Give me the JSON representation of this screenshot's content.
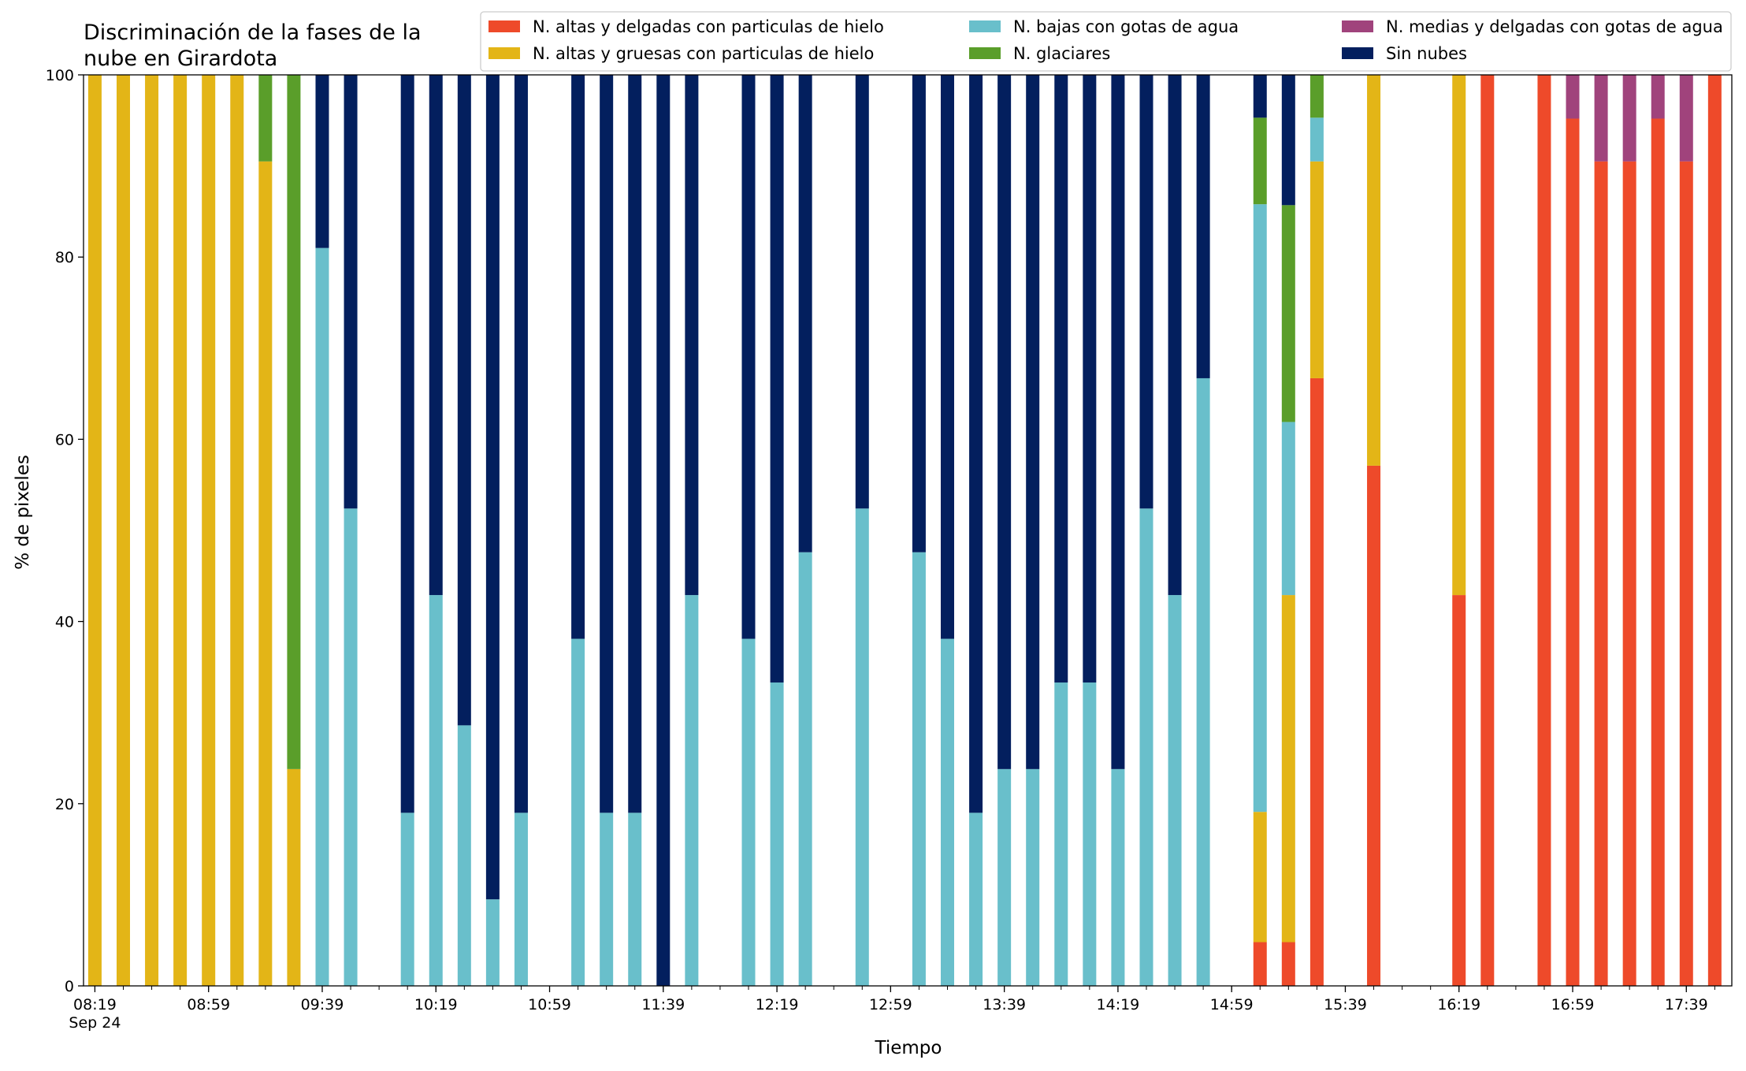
{
  "chart_data": {
    "type": "bar",
    "stacked": true,
    "title": "Discriminación de la fases de la\nnube en Girardota",
    "xlabel": "Tiempo",
    "ylabel": "% de pixeles",
    "ylim": [
      0,
      100
    ],
    "yticks": [
      0,
      20,
      40,
      60,
      80,
      100
    ],
    "xlim": [
      "08:15",
      "17:55"
    ],
    "x_tick_labels": [
      "08:19",
      "08:59",
      "09:39",
      "10:19",
      "10:59",
      "11:39",
      "12:19",
      "12:59",
      "13:39",
      "14:19",
      "14:59",
      "15:39",
      "16:19",
      "16:59",
      "17:39"
    ],
    "x_date_label": "Sep 24",
    "grid": false,
    "legend_position": "upper-right",
    "colors": {
      "alta_delgada_hielo": "#ee4a2a",
      "alta_gruesa_hielo": "#e3b517",
      "baja_agua": "#69bfcb",
      "glaciares": "#5a9e2a",
      "media_delgada_agua": "#a0437c",
      "sin_nubes": "#031f5e"
    },
    "series": [
      {
        "key": "alta_delgada_hielo",
        "name": "N. altas y delgadas con particulas de hielo"
      },
      {
        "key": "alta_gruesa_hielo",
        "name": "N. altas y gruesas con particulas de hielo"
      },
      {
        "key": "baja_agua",
        "name": "N. bajas con gotas de agua"
      },
      {
        "key": "glaciares",
        "name": "N. glaciares"
      },
      {
        "key": "media_delgada_agua",
        "name": "N. medias y delgadas con gotas de agua"
      },
      {
        "key": "sin_nubes",
        "name": "Sin nubes"
      }
    ],
    "bars": [
      {
        "time": "08:19",
        "values": [
          0,
          100,
          0,
          0,
          0,
          0
        ]
      },
      {
        "time": "08:29",
        "values": [
          0,
          100,
          0,
          0,
          0,
          0
        ]
      },
      {
        "time": "08:39",
        "values": [
          0,
          100,
          0,
          0,
          0,
          0
        ]
      },
      {
        "time": "08:49",
        "values": [
          0,
          100,
          0,
          0,
          0,
          0
        ]
      },
      {
        "time": "08:59",
        "values": [
          0,
          100,
          0,
          0,
          0,
          0
        ]
      },
      {
        "time": "09:09",
        "values": [
          0,
          100,
          0,
          0,
          0,
          0
        ]
      },
      {
        "time": "09:19",
        "values": [
          0,
          90.5,
          0,
          9.5,
          0,
          0
        ]
      },
      {
        "time": "09:29",
        "values": [
          0,
          23.8,
          0,
          76.2,
          0,
          0
        ]
      },
      {
        "time": "09:39",
        "values": [
          0,
          0,
          81,
          0,
          0,
          19
        ]
      },
      {
        "time": "09:49",
        "values": [
          0,
          0,
          52.4,
          0,
          0,
          47.6
        ]
      },
      {
        "time": "10:09",
        "values": [
          0,
          0,
          19,
          0,
          0,
          81
        ]
      },
      {
        "time": "10:19",
        "values": [
          0,
          0,
          42.9,
          0,
          0,
          57.1
        ]
      },
      {
        "time": "10:29",
        "values": [
          0,
          0,
          28.6,
          0,
          0,
          71.4
        ]
      },
      {
        "time": "10:39",
        "values": [
          0,
          0,
          9.5,
          0,
          0,
          90.5
        ]
      },
      {
        "time": "10:49",
        "values": [
          0,
          0,
          19,
          0,
          0,
          81
        ]
      },
      {
        "time": "11:09",
        "values": [
          0,
          0,
          38.1,
          0,
          0,
          61.9
        ]
      },
      {
        "time": "11:19",
        "values": [
          0,
          0,
          19,
          0,
          0,
          81
        ]
      },
      {
        "time": "11:29",
        "values": [
          0,
          0,
          19,
          0,
          0,
          81
        ]
      },
      {
        "time": "11:39",
        "values": [
          0,
          0,
          0,
          0,
          0,
          100
        ]
      },
      {
        "time": "11:49",
        "values": [
          0,
          0,
          42.9,
          0,
          0,
          57.1
        ]
      },
      {
        "time": "12:09",
        "values": [
          0,
          0,
          38.1,
          0,
          0,
          61.9
        ]
      },
      {
        "time": "12:19",
        "values": [
          0,
          0,
          33.3,
          0,
          0,
          66.7
        ]
      },
      {
        "time": "12:29",
        "values": [
          0,
          0,
          47.6,
          0,
          0,
          52.4
        ]
      },
      {
        "time": "12:49",
        "values": [
          0,
          0,
          52.4,
          0,
          0,
          47.6
        ]
      },
      {
        "time": "13:09",
        "values": [
          0,
          0,
          47.6,
          0,
          0,
          52.4
        ]
      },
      {
        "time": "13:19",
        "values": [
          0,
          0,
          38.1,
          0,
          0,
          61.9
        ]
      },
      {
        "time": "13:29",
        "values": [
          0,
          0,
          19,
          0,
          0,
          81
        ]
      },
      {
        "time": "13:39",
        "values": [
          0,
          0,
          23.8,
          0,
          0,
          76.2
        ]
      },
      {
        "time": "13:49",
        "values": [
          0,
          0,
          23.8,
          0,
          0,
          76.2
        ]
      },
      {
        "time": "13:59",
        "values": [
          0,
          0,
          33.3,
          0,
          0,
          66.7
        ]
      },
      {
        "time": "14:09",
        "values": [
          0,
          0,
          33.3,
          0,
          0,
          66.7
        ]
      },
      {
        "time": "14:19",
        "values": [
          0,
          0,
          23.8,
          0,
          0,
          76.2
        ]
      },
      {
        "time": "14:29",
        "values": [
          0,
          0,
          52.4,
          0,
          0,
          47.6
        ]
      },
      {
        "time": "14:39",
        "values": [
          0,
          0,
          42.9,
          0,
          0,
          57.1
        ]
      },
      {
        "time": "14:49",
        "values": [
          0,
          0,
          66.7,
          0,
          0,
          33.3
        ]
      },
      {
        "time": "15:09",
        "values": [
          4.8,
          14.3,
          66.7,
          9.5,
          0,
          4.7
        ]
      },
      {
        "time": "15:19",
        "values": [
          4.8,
          38.1,
          19,
          23.8,
          0,
          14.3
        ]
      },
      {
        "time": "15:29",
        "values": [
          66.7,
          23.8,
          4.8,
          4.7,
          0,
          0
        ]
      },
      {
        "time": "15:49",
        "values": [
          57.1,
          42.9,
          0,
          0,
          0,
          0
        ]
      },
      {
        "time": "16:19",
        "values": [
          42.9,
          57.1,
          0,
          0,
          0,
          0
        ]
      },
      {
        "time": "16:29",
        "values": [
          100,
          0,
          0,
          0,
          0,
          0
        ]
      },
      {
        "time": "16:49",
        "values": [
          100,
          0,
          0,
          0,
          0,
          0
        ]
      },
      {
        "time": "16:59",
        "values": [
          95.2,
          0,
          0,
          0,
          4.8,
          0
        ]
      },
      {
        "time": "17:09",
        "values": [
          90.5,
          0,
          0,
          0,
          9.5,
          0
        ]
      },
      {
        "time": "17:19",
        "values": [
          90.5,
          0,
          0,
          0,
          9.5,
          0
        ]
      },
      {
        "time": "17:29",
        "values": [
          95.2,
          0,
          0,
          0,
          4.8,
          0
        ]
      },
      {
        "time": "17:39",
        "values": [
          90.5,
          0,
          0,
          0,
          9.5,
          0
        ]
      },
      {
        "time": "17:49",
        "values": [
          100,
          0,
          0,
          0,
          0,
          0
        ]
      }
    ]
  }
}
